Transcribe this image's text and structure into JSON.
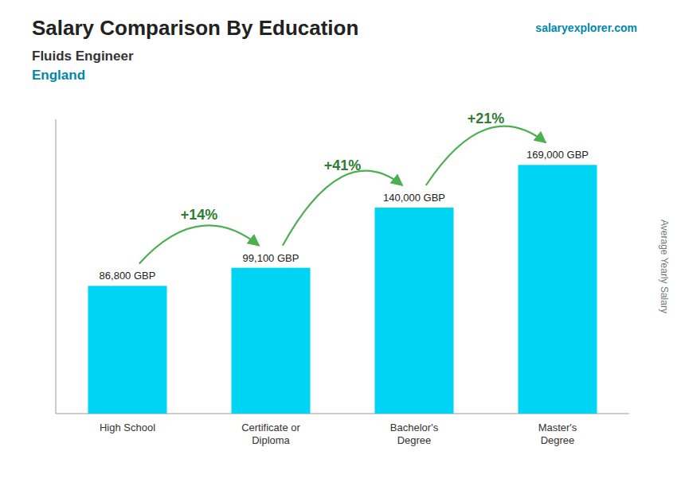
{
  "chart_data": {
    "type": "bar",
    "title": "Salary Comparison By Education",
    "subtitle": [
      "Fluids Engineer",
      "England"
    ],
    "watermark": "salaryexplorer.com",
    "y_label": "Average Yearly Salary",
    "categories": [
      "High School",
      "Certificate or\nDiploma",
      "Bachelor's\nDegree",
      "Master's\nDegree"
    ],
    "values": [
      86800,
      99100,
      140000,
      169000
    ],
    "value_labels": [
      "86,800 GBP",
      "99,100 GBP",
      "140,000 GBP",
      "169,000 GBP"
    ],
    "annotations": [
      "+14%",
      "+41%",
      "+21%"
    ],
    "color": "#00d4f5",
    "ylim": [
      0,
      200000
    ],
    "grid": false,
    "data_labels": true,
    "tick_labels": "x"
  }
}
